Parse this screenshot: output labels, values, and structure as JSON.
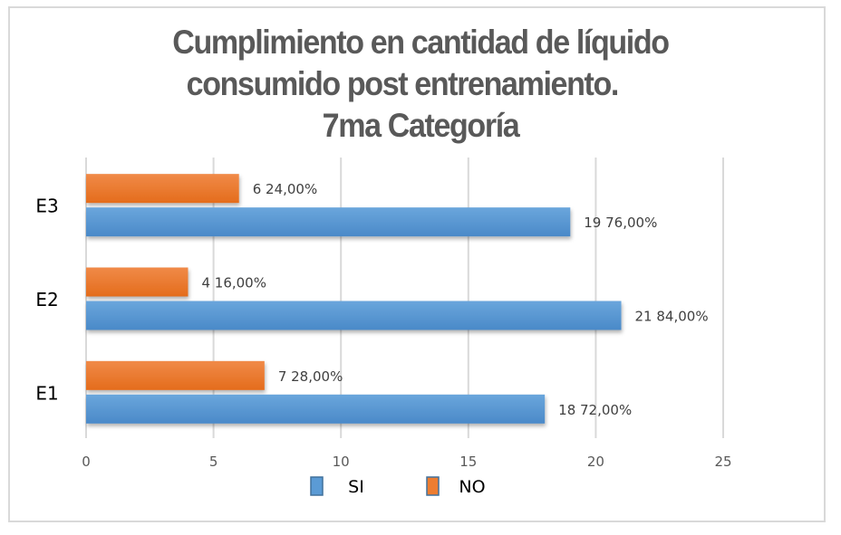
{
  "chart_data": {
    "type": "bar",
    "orientation": "horizontal",
    "title": "Cumplimiento en cantidad de líquido consumido post entrenamiento. 7ma Categoría",
    "title_lines": [
      "Cumplimiento en cantidad de líquido",
      "consumido post entrenamiento.     ",
      "7ma Categoría"
    ],
    "categories": [
      "E1",
      "E2",
      "E3"
    ],
    "series": [
      {
        "name": "SI",
        "color": "#5b9bd5",
        "values": [
          18,
          21,
          19
        ],
        "labels": [
          "18 72,00%",
          "21 84,00%",
          "19 76,00%"
        ]
      },
      {
        "name": "NO",
        "color": "#ed7d31",
        "values": [
          7,
          4,
          6
        ],
        "labels": [
          "7 28,00%",
          "4 16,00%",
          "6 24,00%"
        ]
      }
    ],
    "xlabel": "",
    "ylabel": "",
    "xlim": [
      0,
      25
    ],
    "xticks": [
      0,
      5,
      10,
      15,
      20,
      25
    ],
    "grid": true,
    "legend": {
      "position": "bottom",
      "entries": [
        "SI",
        "NO"
      ]
    }
  }
}
